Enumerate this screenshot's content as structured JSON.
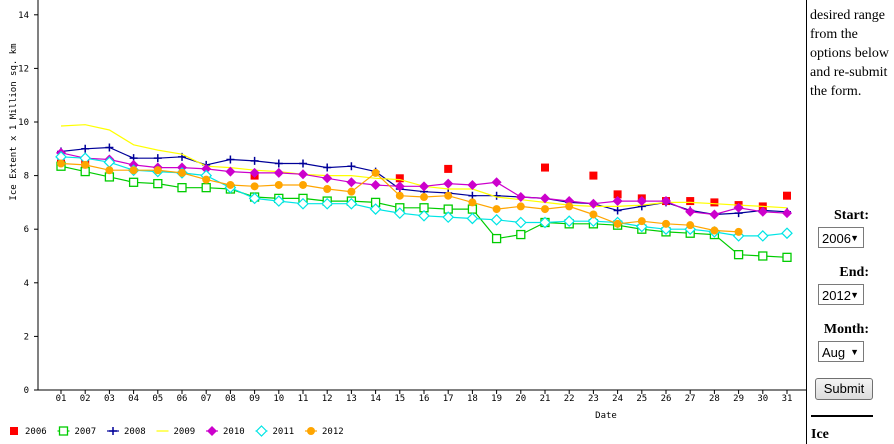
{
  "chart_data": {
    "type": "line",
    "xlabel": "Date",
    "ylabel": "Ice Extent x 1 Million sq. km",
    "ylim": [
      0,
      14
    ],
    "yticks": [
      "0",
      "2",
      "4",
      "6",
      "8",
      "10",
      "12",
      "14"
    ],
    "categories": [
      "01",
      "02",
      "03",
      "04",
      "05",
      "06",
      "07",
      "08",
      "09",
      "10",
      "11",
      "12",
      "13",
      "14",
      "15",
      "16",
      "17",
      "18",
      "19",
      "20",
      "21",
      "22",
      "23",
      "24",
      "25",
      "26",
      "27",
      "28",
      "29",
      "30",
      "31"
    ],
    "series": [
      {
        "name": "2006",
        "color": "#ff0000",
        "marker": "filled-square",
        "line": false,
        "values": [
          8.45,
          8.45,
          null,
          null,
          null,
          null,
          null,
          null,
          8.0,
          null,
          null,
          null,
          null,
          null,
          7.9,
          null,
          8.25,
          null,
          null,
          null,
          8.3,
          null,
          8.0,
          7.3,
          7.15,
          7.05,
          7.05,
          7.0,
          6.9,
          6.85,
          7.25
        ]
      },
      {
        "name": "2007",
        "color": "#00cc00",
        "marker": "open-square",
        "line": true,
        "values": [
          8.35,
          8.15,
          7.95,
          7.75,
          7.7,
          7.55,
          7.55,
          7.5,
          7.2,
          7.15,
          7.15,
          7.05,
          7.05,
          7.0,
          6.8,
          6.8,
          6.75,
          6.75,
          5.65,
          5.8,
          6.25,
          6.2,
          6.2,
          6.15,
          6.0,
          5.9,
          5.85,
          5.8,
          5.05,
          5.0,
          4.95
        ]
      },
      {
        "name": "2008",
        "color": "#000099",
        "marker": "plus",
        "line": true,
        "values": [
          8.9,
          9.0,
          9.05,
          8.65,
          8.65,
          8.7,
          8.4,
          8.6,
          8.55,
          8.45,
          8.45,
          8.3,
          8.35,
          8.15,
          7.5,
          7.4,
          7.35,
          7.25,
          7.25,
          7.2,
          7.15,
          7.0,
          6.95,
          6.7,
          6.85,
          7.0,
          6.7,
          6.55,
          6.6,
          6.7,
          6.65
        ]
      },
      {
        "name": "2009",
        "color": "#ffff00",
        "marker": "none",
        "line": true,
        "values": [
          9.85,
          9.9,
          9.7,
          9.15,
          8.95,
          8.8,
          8.35,
          8.3,
          8.2,
          8.15,
          8.05,
          8.0,
          8.0,
          7.9,
          7.85,
          7.6,
          7.5,
          7.5,
          7.2,
          7.1,
          7.0,
          6.9,
          6.85,
          6.85,
          6.9,
          7.0,
          7.0,
          6.95,
          6.9,
          6.85,
          6.8
        ]
      },
      {
        "name": "2010",
        "color": "#cc00cc",
        "marker": "filled-diamond",
        "line": true,
        "values": [
          8.85,
          8.65,
          8.6,
          8.4,
          8.3,
          8.3,
          8.25,
          8.15,
          8.1,
          8.1,
          8.05,
          7.9,
          7.75,
          7.65,
          7.6,
          7.6,
          7.7,
          7.65,
          7.75,
          7.2,
          7.15,
          7.05,
          6.95,
          7.05,
          7.05,
          7.05,
          6.65,
          6.55,
          6.8,
          6.65,
          6.6
        ]
      },
      {
        "name": "2011",
        "color": "#00e5e5",
        "marker": "open-diamond",
        "line": true,
        "values": [
          8.7,
          8.65,
          8.5,
          8.2,
          8.15,
          8.1,
          8.0,
          7.55,
          7.15,
          7.05,
          6.95,
          6.95,
          6.95,
          6.75,
          6.6,
          6.5,
          6.45,
          6.4,
          6.35,
          6.25,
          6.25,
          6.3,
          6.3,
          6.25,
          6.1,
          6.0,
          6.0,
          5.9,
          5.75,
          5.75,
          5.85
        ]
      },
      {
        "name": "2012",
        "color": "#ffa500",
        "marker": "filled-circle",
        "line": true,
        "values": [
          8.45,
          8.4,
          8.2,
          8.2,
          8.2,
          8.1,
          7.85,
          7.65,
          7.6,
          7.65,
          7.65,
          7.5,
          7.4,
          8.1,
          7.25,
          7.2,
          7.25,
          7.0,
          6.75,
          6.85,
          6.75,
          6.85,
          6.55,
          6.2,
          6.3,
          6.2,
          6.15,
          5.95,
          5.9,
          null,
          null
        ]
      }
    ]
  },
  "sidebar": {
    "instructions": "select the desired range from the options below and re-submit the form.",
    "start_label": "Start:",
    "start_value": "2006",
    "end_label": "End:",
    "end_value": "2012",
    "month_label": "Month:",
    "month_value": "Aug",
    "submit_label": "Submit",
    "footer_label": "Ice"
  },
  "icons": {
    "dropdown": "chevron-down-icon"
  }
}
